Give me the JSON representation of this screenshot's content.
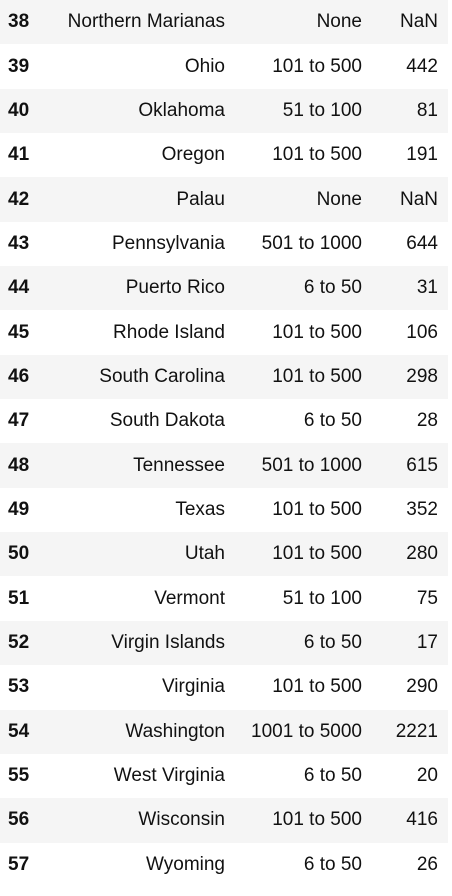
{
  "table": {
    "rows": [
      {
        "index": "38",
        "state": "Northern Marianas",
        "range": "None",
        "count": "NaN"
      },
      {
        "index": "39",
        "state": "Ohio",
        "range": "101 to 500",
        "count": "442"
      },
      {
        "index": "40",
        "state": "Oklahoma",
        "range": "51 to 100",
        "count": "81"
      },
      {
        "index": "41",
        "state": "Oregon",
        "range": "101 to 500",
        "count": "191"
      },
      {
        "index": "42",
        "state": "Palau",
        "range": "None",
        "count": "NaN"
      },
      {
        "index": "43",
        "state": "Pennsylvania",
        "range": "501 to 1000",
        "count": "644"
      },
      {
        "index": "44",
        "state": "Puerto Rico",
        "range": "6 to 50",
        "count": "31"
      },
      {
        "index": "45",
        "state": "Rhode Island",
        "range": "101 to 500",
        "count": "106"
      },
      {
        "index": "46",
        "state": "South Carolina",
        "range": "101 to 500",
        "count": "298"
      },
      {
        "index": "47",
        "state": "South Dakota",
        "range": "6 to 50",
        "count": "28"
      },
      {
        "index": "48",
        "state": "Tennessee",
        "range": "501 to 1000",
        "count": "615"
      },
      {
        "index": "49",
        "state": "Texas",
        "range": "101 to 500",
        "count": "352"
      },
      {
        "index": "50",
        "state": "Utah",
        "range": "101 to 500",
        "count": "280"
      },
      {
        "index": "51",
        "state": "Vermont",
        "range": "51 to 100",
        "count": "75"
      },
      {
        "index": "52",
        "state": "Virgin Islands",
        "range": "6 to 50",
        "count": "17"
      },
      {
        "index": "53",
        "state": "Virginia",
        "range": "101 to 500",
        "count": "290"
      },
      {
        "index": "54",
        "state": "Washington",
        "range": "1001 to 5000",
        "count": "2221"
      },
      {
        "index": "55",
        "state": "West Virginia",
        "range": "6 to 50",
        "count": "20"
      },
      {
        "index": "56",
        "state": "Wisconsin",
        "range": "101 to 500",
        "count": "416"
      },
      {
        "index": "57",
        "state": "Wyoming",
        "range": "6 to 50",
        "count": "26"
      }
    ]
  }
}
